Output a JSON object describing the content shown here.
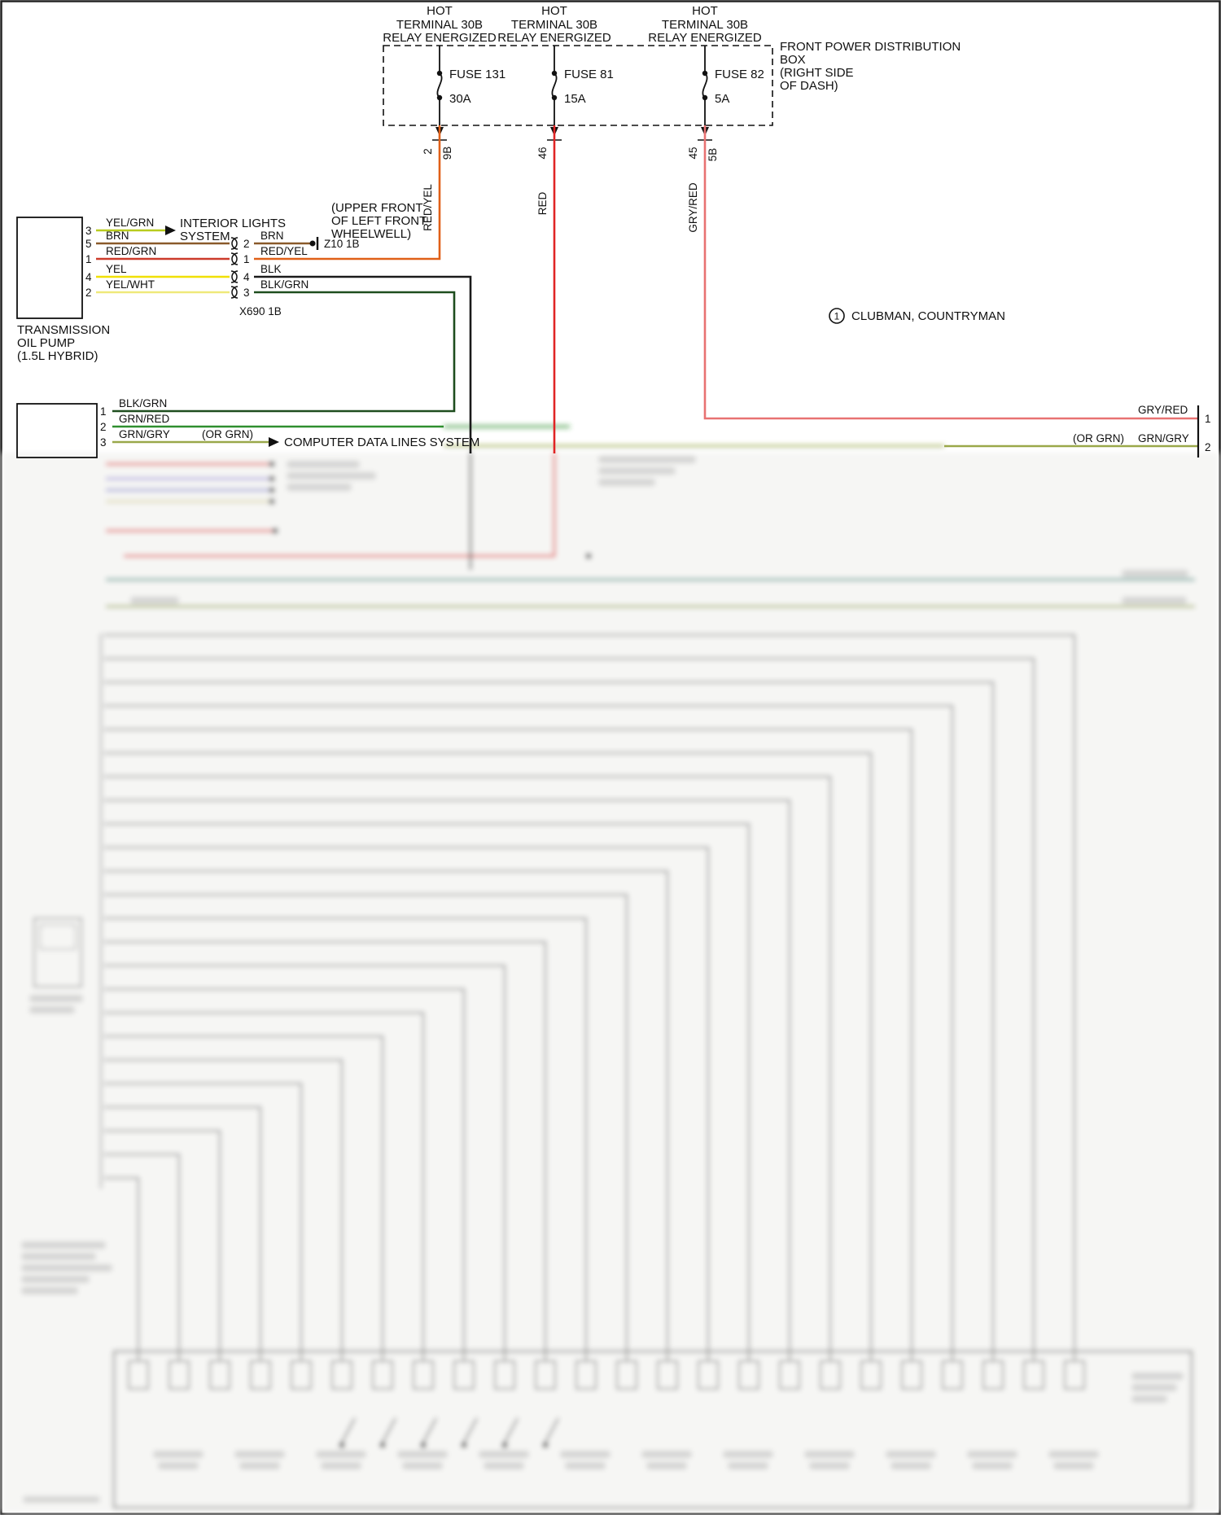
{
  "colors": {
    "red": "#e02424",
    "red_yel": "#e06018",
    "gry_red": "#e87272",
    "yel_grn": "#b8cc1e",
    "brn": "#8a5a2a",
    "red_grn": "#cc3a2a",
    "yel": "#f0e000",
    "yel_wht": "#efe97a",
    "blk": "#1a1a1a",
    "blk_grn": "#1e4d1e",
    "grn_red": "#2f8f2f",
    "grn_gry": "#9aa84a",
    "teal": "#3a9188",
    "tan": "#d8d2a0",
    "blur_gray": "#979797"
  },
  "power_box": {
    "label_lines": [
      "FRONT POWER DISTRIBUTION",
      "BOX",
      "(RIGHT SIDE",
      "OF DASH)"
    ],
    "relays": [
      {
        "hot": "HOT",
        "terminal": "TERMINAL 30B",
        "energized": "RELAY ENERGIZED",
        "fuse": "FUSE 131",
        "amps": "30A",
        "pin_left": "2",
        "pin_right": "9B",
        "wire": "RED/YEL"
      },
      {
        "hot": "HOT",
        "terminal": "TERMINAL 30B",
        "energized": "RELAY ENERGIZED",
        "fuse": "FUSE 81",
        "amps": "15A",
        "pin_left": "46",
        "pin_right": "",
        "wire": "RED"
      },
      {
        "hot": "HOT",
        "terminal": "TERMINAL 30B",
        "energized": "RELAY ENERGIZED",
        "fuse": "FUSE 82",
        "amps": "5A",
        "pin_left": "45",
        "pin_right": "5B",
        "wire": "GRY/RED"
      }
    ]
  },
  "oil_pump": {
    "label_lines": [
      "TRANSMISSION",
      "OIL PUMP",
      "(1.5L HYBRID)"
    ],
    "pins": [
      {
        "pin": "3",
        "wire": "YEL/GRN"
      },
      {
        "pin": "5",
        "wire": "BRN"
      },
      {
        "pin": "1",
        "wire": "RED/GRN"
      },
      {
        "pin": "4",
        "wire": "YEL"
      },
      {
        "pin": "2",
        "wire": "YEL/WHT"
      }
    ]
  },
  "interior_lights_lines": [
    "INTERIOR LIGHTS",
    "SYSTEM"
  ],
  "splice": {
    "label": "X690 1B",
    "pins": [
      {
        "pin": "2",
        "wire": "BRN"
      },
      {
        "pin": "1",
        "wire": "RED/YEL"
      },
      {
        "pin": "4",
        "wire": "BLK"
      },
      {
        "pin": "3",
        "wire": "BLK/GRN"
      }
    ]
  },
  "ground": {
    "label": "Z10 1B"
  },
  "wheelwell_note_lines": [
    "(UPPER FRONT",
    "OF LEFT FRONT",
    "WHEELWELL)"
  ],
  "footnote": {
    "num": "1",
    "text": "CLUBMAN, COUNTRYMAN"
  },
  "connector2": {
    "pins": [
      {
        "pin": "1",
        "wire": "BLK/GRN"
      },
      {
        "pin": "2",
        "wire": "GRN/RED"
      },
      {
        "pin": "3",
        "wire": "GRN/GRY",
        "alt": "(OR GRN)"
      }
    ],
    "arrow_label": "COMPUTER DATA LINES SYSTEM"
  },
  "right_edge": {
    "row1": {
      "wire": "GRY/RED",
      "pin": "1"
    },
    "row2": {
      "alt": "(OR GRN)",
      "wire": "GRN/GRY",
      "pin": "2"
    }
  }
}
